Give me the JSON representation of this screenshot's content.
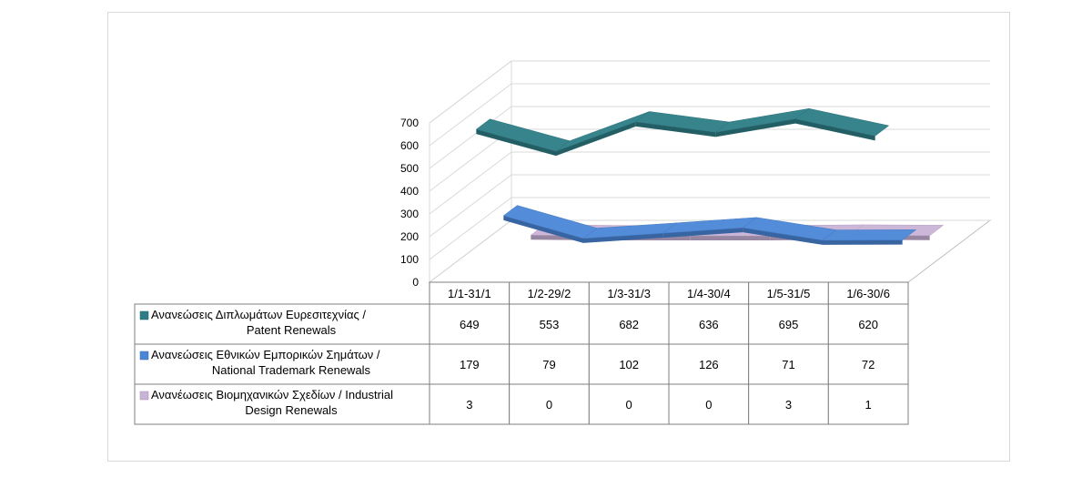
{
  "chart_data": {
    "type": "line",
    "style": "3d-ribbon-with-data-table",
    "categories": [
      "1/1-31/1",
      "1/2-29/2",
      "1/3-31/3",
      "1/4-30/4",
      "1/5-31/5",
      "1/6-30/6"
    ],
    "yaxis": {
      "ticks": [
        "0",
        "100",
        "200",
        "300",
        "400",
        "500",
        "600",
        "700"
      ],
      "ylim": [
        0,
        700
      ]
    },
    "series": [
      {
        "key": "patent",
        "name_line1": "Ανανεώσεις Διπλωμάτων Ευρεσιτεχνίας  /",
        "name_line2": "Patent Renewals",
        "color": "#2e7d86",
        "values": [
          649,
          553,
          682,
          636,
          695,
          620
        ]
      },
      {
        "key": "trademark",
        "name_line1": "Ανανεώσεις Εθνικών Εμπορικών Σημάτων /",
        "name_line2": "National Trademark Renewals",
        "color": "#4a86d6",
        "values": [
          179,
          79,
          102,
          126,
          71,
          72
        ]
      },
      {
        "key": "design",
        "name_line1": "Ανανέωσεις Βιομηχανικών Σχεδίων / Industrial",
        "name_line2": "Design Renewals",
        "color": "#c9b3d6",
        "values": [
          3,
          0,
          0,
          0,
          3,
          1
        ]
      }
    ],
    "grid": true,
    "legend": "data-table-left"
  }
}
